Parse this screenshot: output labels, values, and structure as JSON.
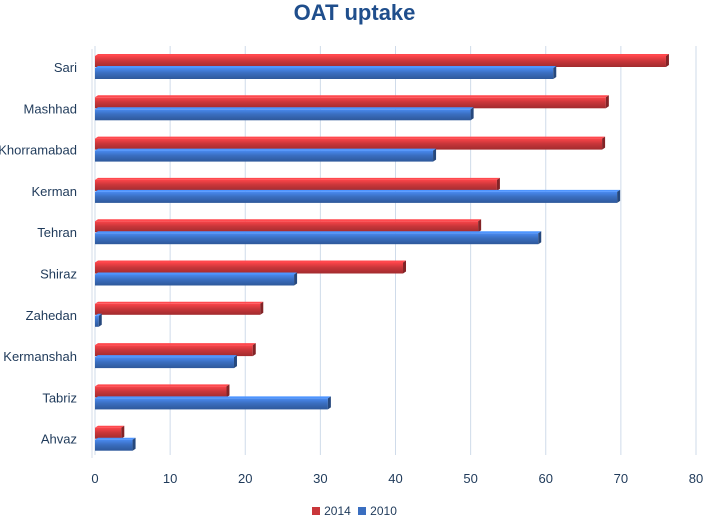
{
  "chart_data": {
    "type": "bar",
    "orientation": "horizontal",
    "title": "OAT uptake",
    "categories": [
      "Sari",
      "Mashhad",
      "Khorramabad",
      "Kerman",
      "Tehran",
      "Shiraz",
      "Zahedan",
      "Kermanshah",
      "Tabriz",
      "Ahvaz"
    ],
    "series": [
      {
        "name": "2014",
        "color": "#c9363a",
        "values": [
          76,
          68,
          67.5,
          53.5,
          51,
          41,
          22,
          21,
          17.5,
          3.5
        ]
      },
      {
        "name": "2010",
        "color": "#3a6ec0",
        "values": [
          61,
          50,
          45,
          69.5,
          59,
          26.5,
          0.5,
          18.5,
          31,
          5
        ]
      }
    ],
    "xlim": [
      0,
      80
    ],
    "xticks": [
      0,
      10,
      20,
      30,
      40,
      50,
      60,
      70,
      80
    ],
    "xlabel": "",
    "ylabel": "",
    "grid": true,
    "legend_position": "bottom"
  }
}
